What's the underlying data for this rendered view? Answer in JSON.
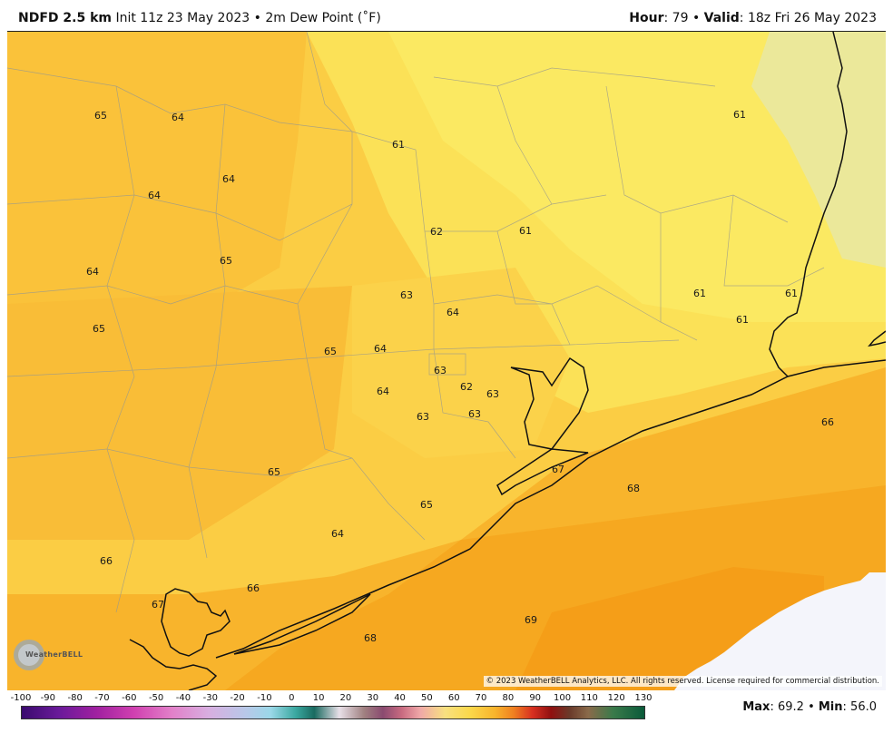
{
  "header": {
    "model": "NDFD 2.5 km",
    "init": "Init 11z 23 May 2023",
    "bullet": "•",
    "product": "2m Dew Point (˚F)",
    "hour_label": "Hour",
    "hour_value": ": 79",
    "valid_label": "Valid",
    "valid_value": ": 18z Fri 26 May 2023"
  },
  "copyright": "© 2023 WeatherBELL Analytics, LLC. All rights reserved. License required for commercial distribution.",
  "logo_text": "WeatherBELL",
  "scale": {
    "ticks": [
      "-100",
      "-90",
      "-80",
      "-70",
      "-60",
      "-50",
      "-40",
      "-30",
      "-20",
      "-10",
      "0",
      "10",
      "20",
      "30",
      "40",
      "50",
      "60",
      "70",
      "80",
      "90",
      "100",
      "110",
      "120",
      "130"
    ]
  },
  "stats": {
    "max_label": "Max",
    "max_value": ": 69.2",
    "min_label": "Min",
    "min_value": ": 56.0",
    "bullet": "•"
  },
  "map_labels": [
    {
      "name": "dewpoint-value",
      "text": "65"
    },
    {
      "name": "dewpoint-value",
      "text": "64"
    },
    {
      "name": "dewpoint-value",
      "text": "61"
    },
    {
      "name": "dewpoint-value",
      "text": "61"
    },
    {
      "name": "dewpoint-value",
      "text": "64"
    },
    {
      "name": "dewpoint-value",
      "text": "64"
    },
    {
      "name": "dewpoint-value",
      "text": "62"
    },
    {
      "name": "dewpoint-value",
      "text": "61"
    },
    {
      "name": "dewpoint-value",
      "text": "64"
    },
    {
      "name": "dewpoint-value",
      "text": "65"
    },
    {
      "name": "dewpoint-value",
      "text": "63"
    },
    {
      "name": "dewpoint-value",
      "text": "61"
    },
    {
      "name": "dewpoint-value",
      "text": "61"
    },
    {
      "name": "dewpoint-value",
      "text": "64"
    },
    {
      "name": "dewpoint-value",
      "text": "61"
    },
    {
      "name": "dewpoint-value",
      "text": "65"
    },
    {
      "name": "dewpoint-value",
      "text": "65"
    },
    {
      "name": "dewpoint-value",
      "text": "64"
    },
    {
      "name": "dewpoint-value",
      "text": "63"
    },
    {
      "name": "dewpoint-value",
      "text": "62"
    },
    {
      "name": "dewpoint-value",
      "text": "63"
    },
    {
      "name": "dewpoint-value",
      "text": "64"
    },
    {
      "name": "dewpoint-value",
      "text": "63"
    },
    {
      "name": "dewpoint-value",
      "text": "63"
    },
    {
      "name": "dewpoint-value",
      "text": "66"
    },
    {
      "name": "dewpoint-value",
      "text": "65"
    },
    {
      "name": "dewpoint-value",
      "text": "67"
    },
    {
      "name": "dewpoint-value",
      "text": "68"
    },
    {
      "name": "dewpoint-value",
      "text": "65"
    },
    {
      "name": "dewpoint-value",
      "text": "64"
    },
    {
      "name": "dewpoint-value",
      "text": "66"
    },
    {
      "name": "dewpoint-value",
      "text": "66"
    },
    {
      "name": "dewpoint-value",
      "text": "67"
    },
    {
      "name": "dewpoint-value",
      "text": "69"
    },
    {
      "name": "dewpoint-value",
      "text": "68"
    }
  ],
  "colors": {
    "dew_60": "#f9e65a",
    "dew_62": "#fbd84a",
    "dew_64": "#fac43a",
    "dew_66": "#f8b42c",
    "dew_68": "#f6a41e",
    "dew_56": "#e6e7a8",
    "water_nodata": "#f4f5fb"
  }
}
